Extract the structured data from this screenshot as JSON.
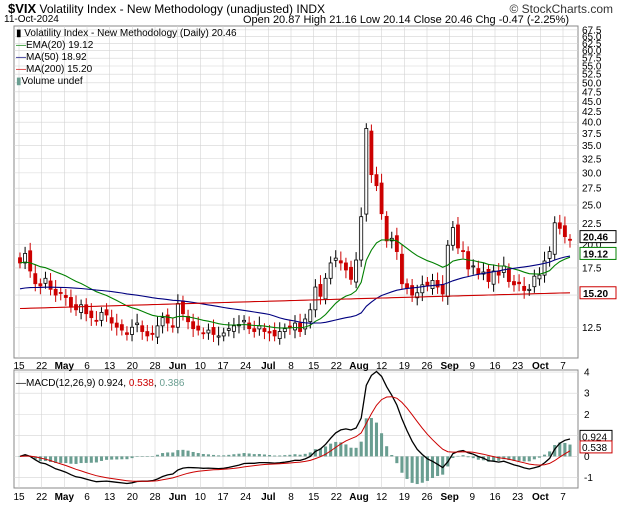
{
  "header": {
    "symbol": "$VIX",
    "name": "Volatility Index - New Methodology (unadjusted)",
    "exchange": "INDX",
    "date": "11-Oct-2024",
    "open_label": "Open",
    "open": "20.87",
    "high_label": "High",
    "high": "21.16",
    "low_label": "Low",
    "low": "20.14",
    "close_label": "Close",
    "close": "20.46",
    "chg_label": "Chg",
    "chg": "-0.47 (-2.25%)",
    "watermark": "© StockCharts.com"
  },
  "legend": {
    "main": "Volatility Index - New Methodology (Daily) 20.46",
    "ema": "EMA(20) 19.12",
    "ma50": "MA(50) 18.92",
    "ma200": "MA(200) 15.20",
    "volume": "Volume undef"
  },
  "macd_legend": {
    "label": "MACD(12,26,9)",
    "v1": "0.924",
    "v2": "0.538",
    "v3": "0.386"
  },
  "colors": {
    "up": "#000000",
    "down": "#cc0000",
    "ema": "#008000",
    "ma50": "#000080",
    "ma200": "#cc0000",
    "hist": "#6a9e91",
    "macd_line": "#000000",
    "signal": "#cc0000",
    "grid": "#d4d4d4"
  },
  "price_axis": {
    "ticks": [
      "67.5",
      "65.0",
      "62.5",
      "60.0",
      "57.5",
      "55.0",
      "52.5",
      "50.0",
      "47.5",
      "45.0",
      "42.5",
      "40.0",
      "37.5",
      "35.0",
      "32.5",
      "30.0",
      "27.5",
      "25.0",
      "22.5",
      "20.0",
      "17.5",
      "15.0",
      "12.5"
    ],
    "tag_close": "20.46",
    "tag_ema": "19.12",
    "tag_ma200": "15.20"
  },
  "macd_axis": {
    "ticks": [
      "4",
      "3",
      "2",
      "1",
      "0",
      "-1"
    ],
    "tag_macd": "0.924",
    "tag_signal": "0.538"
  },
  "x_axis": {
    "labels": [
      {
        "text": "15",
        "bold": false
      },
      {
        "text": "22",
        "bold": false
      },
      {
        "text": "May",
        "bold": true
      },
      {
        "text": "6",
        "bold": false
      },
      {
        "text": "13",
        "bold": false
      },
      {
        "text": "20",
        "bold": false
      },
      {
        "text": "28",
        "bold": false
      },
      {
        "text": "Jun",
        "bold": true
      },
      {
        "text": "10",
        "bold": false
      },
      {
        "text": "17",
        "bold": false
      },
      {
        "text": "24",
        "bold": false
      },
      {
        "text": "Jul",
        "bold": true
      },
      {
        "text": "8",
        "bold": false
      },
      {
        "text": "15",
        "bold": false
      },
      {
        "text": "22",
        "bold": false
      },
      {
        "text": "Aug",
        "bold": true
      },
      {
        "text": "12",
        "bold": false
      },
      {
        "text": "19",
        "bold": false
      },
      {
        "text": "26",
        "bold": false
      },
      {
        "text": "Sep",
        "bold": true
      },
      {
        "text": "9",
        "bold": false
      },
      {
        "text": "16",
        "bold": false
      },
      {
        "text": "23",
        "bold": false
      },
      {
        "text": "Oct",
        "bold": true
      },
      {
        "text": "7",
        "bold": false
      }
    ]
  },
  "chart_data": {
    "type": "line",
    "subtype": "candlestick",
    "title": "Volatility Index - New Methodology (unadjusted)",
    "yscale": "log",
    "ylim": [
      10.5,
      69
    ],
    "grid": true,
    "legend_position": "top-left",
    "closes": [
      18.0,
      19.0,
      17.2,
      16.0,
      15.8,
      16.5,
      15.5,
      15.0,
      15.2,
      14.8,
      14.0,
      13.8,
      14.2,
      13.5,
      13.2,
      13.0,
      13.6,
      13.4,
      12.8,
      12.5,
      12.3,
      12.0,
      12.5,
      12.8,
      12.2,
      11.9,
      12.0,
      12.6,
      13.2,
      12.8,
      12.5,
      14.3,
      13.5,
      12.9,
      12.4,
      12.3,
      12.1,
      12.3,
      12.0,
      11.9,
      12.1,
      12.4,
      12.6,
      12.7,
      13.0,
      12.4,
      12.2,
      12.6,
      12.2,
      12.1,
      11.9,
      12.2,
      12.4,
      12.5,
      12.8,
      12.2,
      13.1,
      13.8,
      15.7,
      14.9,
      16.5,
      18.0,
      18.5,
      18.0,
      17.3,
      16.4,
      18.3,
      23.4,
      38.6,
      29.7,
      27.9,
      23.8,
      20.4,
      20.7,
      19.2,
      16.0,
      15.6,
      15.0,
      15.2,
      15.9,
      15.8,
      16.3,
      15.7,
      15.1,
      19.9,
      22.0,
      19.6,
      19.2,
      17.4,
      17.7,
      16.9,
      17.1,
      16.2,
      17.2,
      16.8,
      17.7,
      16.2,
      15.9,
      16.0,
      15.4,
      15.5,
      16.7,
      16.8,
      18.2,
      19.2,
      22.6,
      21.9,
      20.9,
      20.5
    ],
    "series": [
      {
        "name": "EMA(20)",
        "last": 19.12
      },
      {
        "name": "MA(50)",
        "last": 18.92
      },
      {
        "name": "MA(200)",
        "last": 15.2
      }
    ],
    "macd": {
      "label": "MACD(12,26,9)",
      "macd_last": 0.924,
      "signal_last": 0.538,
      "hist_last": 0.386,
      "ylim": [
        -1.5,
        4.1
      ]
    }
  }
}
